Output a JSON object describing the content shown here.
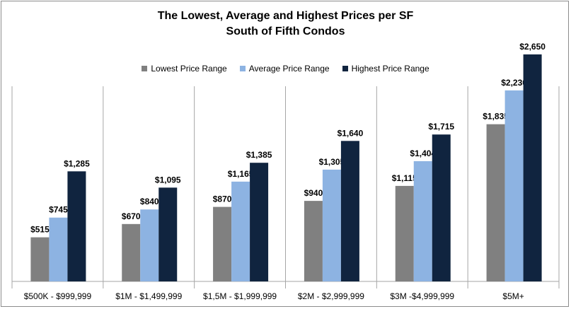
{
  "chart_data": {
    "type": "bar",
    "title": "The Lowest, Average and Highest Prices per SF",
    "subtitle": "South of Fifth Condos",
    "categories": [
      "$500K - $999,999",
      "$1M - $1,499,999",
      "$1,5M - $1,999,999",
      "$2M - $2,999,999",
      "$3M -$4,999,999",
      "$5M+"
    ],
    "series": [
      {
        "name": "Lowest Price Range",
        "color": "#808080",
        "values": [
          515,
          670,
          870,
          940,
          1115,
          1835
        ],
        "labels": [
          "$515",
          "$670",
          "$870",
          "$940",
          "$1,115",
          "$1,835"
        ]
      },
      {
        "name": "Average Price Range",
        "color": "#8db3e2",
        "values": [
          745,
          840,
          1165,
          1305,
          1404,
          2230
        ],
        "labels": [
          "$745",
          "$840",
          "$1,165",
          "$1,305",
          "$1,404",
          "$2,230"
        ]
      },
      {
        "name": "Highest Price Range",
        "color": "#10243f",
        "values": [
          1285,
          1095,
          1385,
          1640,
          1715,
          2650
        ],
        "labels": [
          "$1,285",
          "$1,095",
          "$1,385",
          "$1,640",
          "$1,715",
          "$2,650"
        ]
      }
    ],
    "ylim": [
      0,
      3120
    ],
    "legend_position": "top-center",
    "grid": false
  }
}
